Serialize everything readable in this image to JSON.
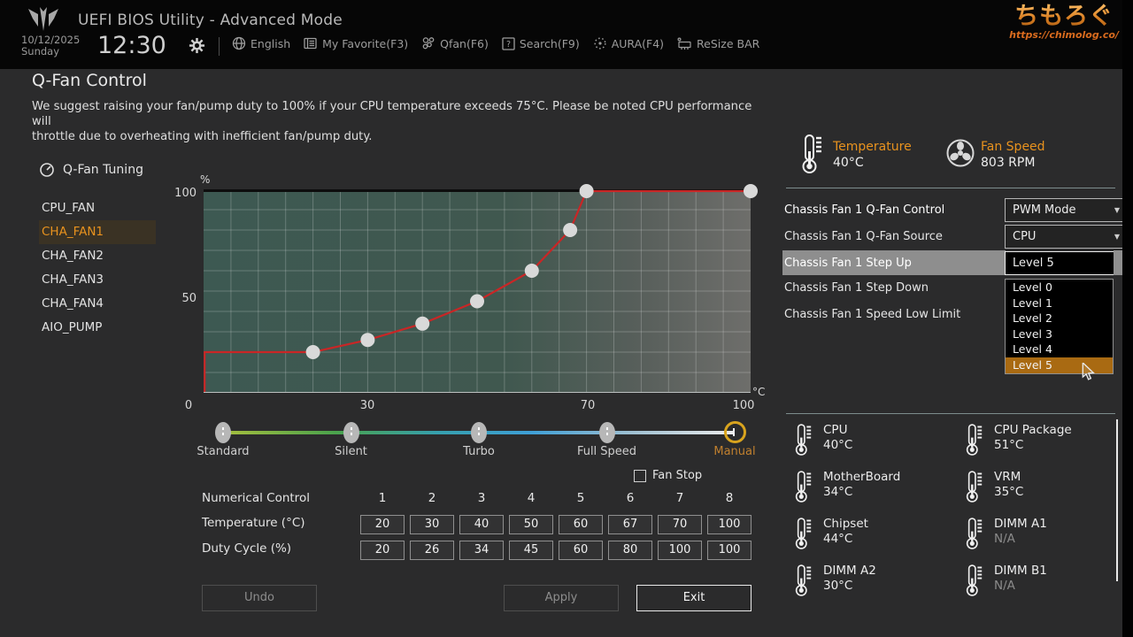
{
  "top_bar": {
    "title": "UEFI BIOS Utility - Advanced Mode",
    "date": "10/12/2025",
    "day": "Sunday",
    "time": "12:30",
    "menu": [
      {
        "icon": "globe-icon",
        "label": "English"
      },
      {
        "icon": "favorite-icon",
        "label": "My Favorite(F3)"
      },
      {
        "icon": "fan-icon",
        "label": "Qfan(F6)"
      },
      {
        "icon": "search-icon",
        "label": "Search(F9)"
      },
      {
        "icon": "aura-icon",
        "label": "AURA(F4)"
      },
      {
        "icon": "resize-bar-icon",
        "label": "ReSize BAR"
      }
    ],
    "watermark": {
      "name": "ちもろぐ",
      "url": "https://chimolog.co/"
    }
  },
  "page": {
    "title": "Q-Fan Control",
    "description_line1": "We suggest raising your fan/pump duty to 100% if your CPU temperature exceeds 75°C. Please be noted CPU performance will",
    "description_line2": "throttle due to overheating with inefficient fan/pump duty."
  },
  "sidebar": {
    "tuning_label": "Q-Fan Tuning",
    "fans": [
      {
        "label": "CPU_FAN",
        "selected": false
      },
      {
        "label": "CHA_FAN1",
        "selected": true
      },
      {
        "label": "CHA_FAN2",
        "selected": false
      },
      {
        "label": "CHA_FAN3",
        "selected": false
      },
      {
        "label": "CHA_FAN4",
        "selected": false
      },
      {
        "label": "AIO_PUMP",
        "selected": false
      }
    ]
  },
  "chart_data": {
    "type": "line",
    "title": "CHA_FAN1 fan curve (duty % vs temperature °C)",
    "xlabel": "°C",
    "ylabel": "%",
    "x": [
      20,
      30,
      40,
      50,
      60,
      67,
      70,
      100
    ],
    "y": [
      20,
      26,
      34,
      45,
      60,
      80,
      100,
      100
    ],
    "line_start": {
      "x": 0,
      "y": 20
    },
    "xlim": [
      0,
      100
    ],
    "ylim": [
      0,
      100
    ],
    "x_ticks": [
      0,
      30,
      70,
      100
    ],
    "y_ticks": [
      0,
      50,
      100
    ],
    "grid": true,
    "legend": "none"
  },
  "profiles": {
    "options": [
      "Standard",
      "Silent",
      "Turbo",
      "Full Speed",
      "Manual"
    ],
    "selected": "Manual"
  },
  "fan_stop": {
    "label": "Fan Stop",
    "checked": false
  },
  "numeric": {
    "row_label": "Numerical Control",
    "columns": [
      1,
      2,
      3,
      4,
      5,
      6,
      7,
      8
    ],
    "temperature_label": "Temperature (°C)",
    "temperature_values": [
      20,
      30,
      40,
      50,
      60,
      67,
      70,
      100
    ],
    "duty_label": "Duty Cycle (%)",
    "duty_values": [
      20,
      26,
      34,
      45,
      60,
      80,
      100,
      100
    ]
  },
  "buttons": {
    "undo": "Undo",
    "apply": "Apply",
    "exit": "Exit"
  },
  "status": {
    "temperature": {
      "label": "Temperature",
      "value": "40°C"
    },
    "fan_speed": {
      "label": "Fan Speed",
      "value": "803 RPM"
    }
  },
  "settings": {
    "rows": [
      {
        "label": "Chassis Fan 1 Q-Fan Control",
        "value": "PWM Mode"
      },
      {
        "label": "Chassis Fan 1 Q-Fan Source",
        "value": "CPU"
      },
      {
        "label": "Chassis Fan 1 Step Up",
        "value": "Level 5",
        "highlighted": true
      },
      {
        "label": "Chassis Fan 1 Step Down",
        "value": ""
      },
      {
        "label": "Chassis Fan 1 Speed Low Limit",
        "value": ""
      }
    ],
    "dropdown": {
      "options": [
        "Level 0",
        "Level 1",
        "Level 2",
        "Level 3",
        "Level 4",
        "Level 5"
      ],
      "selected": "Level 5"
    }
  },
  "sensors": [
    {
      "name": "CPU",
      "value": "40°C"
    },
    {
      "name": "CPU Package",
      "value": "51°C"
    },
    {
      "name": "MotherBoard",
      "value": "34°C"
    },
    {
      "name": "VRM",
      "value": "35°C"
    },
    {
      "name": "Chipset",
      "value": "44°C"
    },
    {
      "name": "DIMM A1",
      "value": "N/A"
    },
    {
      "name": "DIMM A2",
      "value": "30°C"
    },
    {
      "name": "DIMM B1",
      "value": "N/A"
    }
  ],
  "colors": {
    "accent": "#e8921e",
    "curve": "#c92626",
    "selected_option_bg": "#a96a12",
    "chart_teal": "#3d5952"
  }
}
